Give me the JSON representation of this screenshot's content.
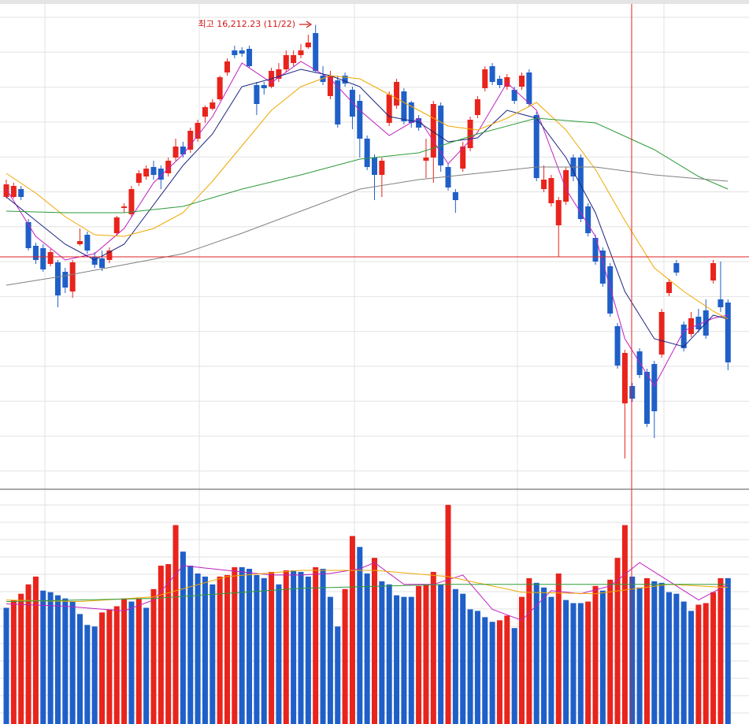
{
  "chart_data": {
    "type": "candlestick",
    "annotation": "최고 16,212.23 (11/22)",
    "up_color": "#e8241c",
    "down_color": "#1f5fc8",
    "ylim": [
      13270,
      16370
    ],
    "open": [
      15120,
      15120,
      15170,
      14960,
      14810,
      14795,
      14695,
      14705,
      14645,
      14520,
      14820,
      14880,
      14740,
      14730,
      14720,
      14890,
      15050,
      15010,
      15210,
      15250,
      15310,
      15300,
      15270,
      15370,
      15440,
      15420,
      15490,
      15630,
      15680,
      15740,
      15910,
      16050,
      16050,
      16060,
      15830,
      15830,
      15820,
      15870,
      15930,
      15970,
      16020,
      16070,
      16160,
      15890,
      15760,
      15860,
      15890,
      15800,
      15730,
      15490,
      15370,
      15260,
      15590,
      15700,
      15790,
      15720,
      15620,
      15350,
      15370,
      15700,
      15310,
      15150,
      15300,
      15430,
      15640,
      15810,
      15950,
      15870,
      15820,
      15800,
      15820,
      15910,
      15640,
      15170,
      15080,
      14940,
      15090,
      15370,
      15370,
      15060,
      14860,
      14780,
      14680,
      14300,
      13810,
      13920,
      14140,
      14010,
      14060,
      14120,
      14510,
      14700,
      14310,
      14250,
      14360,
      14400,
      14590,
      14470,
      14450
    ],
    "high": [
      15230,
      15210,
      15190,
      14980,
      14830,
      14820,
      14790,
      14720,
      14670,
      14720,
      14920,
      14900,
      14770,
      14780,
      14800,
      15000,
      15080,
      15190,
      15290,
      15320,
      15350,
      15320,
      15370,
      15490,
      15470,
      15560,
      15610,
      15700,
      15740,
      15890,
      16000,
      16080,
      16070,
      16080,
      15850,
      15850,
      15940,
      15970,
      16050,
      16050,
      16090,
      16150,
      16212.23,
      15950,
      15920,
      15890,
      15910,
      15820,
      15770,
      15510,
      15390,
      15370,
      15790,
      15870,
      15810,
      15730,
      15640,
      15490,
      15730,
      15720,
      15330,
      15170,
      15470,
      15630,
      15760,
      15950,
      15970,
      15890,
      15900,
      15820,
      15910,
      15930,
      15660,
      15320,
      15260,
      15120,
      15310,
      15390,
      15390,
      15080,
      14880,
      14800,
      14700,
      14320,
      14150,
      13940,
      14160,
      14030,
      14080,
      14410,
      14600,
      14720,
      14330,
      14390,
      14410,
      14470,
      14720,
      14710,
      14470
    ],
    "low": [
      15110,
      15110,
      15100,
      14780,
      14695,
      14645,
      14680,
      14420,
      14510,
      14480,
      14810,
      14760,
      14670,
      14650,
      14700,
      14870,
      15020,
      14990,
      15190,
      15230,
      15230,
      15170,
      15250,
      15350,
      15370,
      15400,
      15470,
      15590,
      15670,
      15730,
      15890,
      16000,
      16010,
      15940,
      15640,
      15770,
      15810,
      15850,
      15910,
      15950,
      16000,
      16060,
      15910,
      15830,
      15740,
      15560,
      15820,
      15550,
      15370,
      15290,
      15100,
      15120,
      15570,
      15680,
      15580,
      15560,
      15540,
      15240,
      15210,
      15280,
      15160,
      15020,
      15280,
      15410,
      15620,
      15790,
      15830,
      15810,
      15800,
      15710,
      15800,
      15690,
      15220,
      15150,
      15060,
      14740,
      15070,
      15220,
      14960,
      14870,
      14690,
      14550,
      14360,
      14030,
      13460,
      13820,
      13970,
      13660,
      13590,
      14100,
      14490,
      14620,
      14140,
      14230,
      14260,
      14220,
      14570,
      14390,
      14020
    ],
    "close": [
      15200,
      15190,
      15120,
      14795,
      14720,
      14660,
      14770,
      14495,
      14545,
      14705,
      14840,
      14780,
      14690,
      14670,
      14780,
      14990,
      15060,
      15170,
      15270,
      15300,
      15260,
      15230,
      15350,
      15440,
      15390,
      15540,
      15590,
      15690,
      15720,
      15880,
      15980,
      16020,
      16030,
      15950,
      15710,
      15810,
      15920,
      15930,
      16020,
      16020,
      16050,
      16100,
      15920,
      15850,
      15890,
      15580,
      15840,
      15630,
      15490,
      15310,
      15260,
      15350,
      15770,
      15850,
      15600,
      15590,
      15560,
      15370,
      15710,
      15320,
      15180,
      15100,
      15440,
      15610,
      15740,
      15930,
      15850,
      15830,
      15880,
      15730,
      15890,
      15710,
      15240,
      15230,
      15240,
      15100,
      15290,
      15250,
      14980,
      14890,
      14710,
      14570,
      14380,
      14050,
      14130,
      13840,
      13990,
      13680,
      13760,
      14390,
      14580,
      14640,
      14160,
      14350,
      14280,
      14240,
      14700,
      14420,
      14070
    ],
    "moving_averages": [
      {
        "color": "#c020c0",
        "x": [
          0,
          4,
          8,
          12,
          16,
          20,
          24,
          28,
          32,
          36,
          40,
          44,
          48,
          52,
          56,
          60,
          64,
          68,
          72,
          76,
          80,
          84,
          88,
          92,
          96,
          98
        ],
        "values": [
          15170,
          14870,
          14720,
          14760,
          14920,
          15210,
          15390,
          15630,
          15970,
          15845,
          15980,
          15870,
          15670,
          15510,
          15620,
          15330,
          15530,
          15845,
          15670,
          15170,
          14870,
          14220,
          13920,
          14270,
          14350,
          14370
        ]
      },
      {
        "color": "#1a237e",
        "x": [
          0,
          4,
          8,
          12,
          16,
          20,
          24,
          28,
          32,
          36,
          40,
          44,
          48,
          52,
          56,
          60,
          64,
          68,
          72,
          76,
          80,
          84,
          88,
          92,
          96,
          98
        ],
        "values": [
          15120,
          14970,
          14820,
          14720,
          14820,
          15070,
          15320,
          15520,
          15820,
          15870,
          15930,
          15890,
          15820,
          15630,
          15595,
          15470,
          15495,
          15670,
          15620,
          15370,
          15020,
          14520,
          14220,
          14170,
          14370,
          14345
        ]
      },
      {
        "color": "#f0a800",
        "x": [
          0,
          4,
          8,
          12,
          16,
          20,
          24,
          28,
          32,
          36,
          40,
          44,
          48,
          52,
          56,
          60,
          64,
          68,
          72,
          76,
          80,
          84,
          88,
          92,
          96,
          98
        ],
        "values": [
          15270,
          15145,
          14995,
          14880,
          14870,
          14920,
          15020,
          15220,
          15445,
          15670,
          15820,
          15890,
          15870,
          15770,
          15670,
          15570,
          15545,
          15620,
          15720,
          15545,
          15295,
          14970,
          14670,
          14520,
          14395,
          14345
        ]
      },
      {
        "color": "#2e9b3a",
        "x": [
          0,
          8,
          16,
          24,
          32,
          40,
          48,
          56,
          64,
          72,
          80,
          88,
          94,
          98
        ],
        "values": [
          15030,
          15020,
          15020,
          15060,
          15170,
          15260,
          15360,
          15400,
          15520,
          15620,
          15590,
          15420,
          15250,
          15170
        ]
      },
      {
        "color": "#808080",
        "x": [
          0,
          8,
          16,
          24,
          32,
          40,
          48,
          56,
          64,
          72,
          80,
          88,
          98
        ],
        "values": [
          14560,
          14620,
          14690,
          14760,
          14890,
          15030,
          15170,
          15230,
          15270,
          15310,
          15310,
          15260,
          15220
        ]
      }
    ],
    "volume": {
      "ylim": [
        0,
        3000
      ],
      "values": [
        1490,
        1590,
        1670,
        1790,
        1890,
        1710,
        1690,
        1650,
        1610,
        1570,
        1410,
        1270,
        1250,
        1430,
        1470,
        1510,
        1610,
        1570,
        1610,
        1490,
        1730,
        2030,
        2050,
        2550,
        2210,
        2030,
        1930,
        1890,
        1790,
        1890,
        1910,
        2010,
        2010,
        1990,
        1910,
        1870,
        1950,
        1790,
        1970,
        1970,
        1950,
        1890,
        2010,
        1990,
        1630,
        1250,
        1730,
        2410,
        2270,
        1930,
        2130,
        1830,
        1790,
        1650,
        1630,
        1630,
        1770,
        1790,
        1950,
        1790,
        2810,
        1730,
        1670,
        1470,
        1450,
        1370,
        1310,
        1330,
        1390,
        1230,
        1630,
        1870,
        1810,
        1750,
        1630,
        1930,
        1590,
        1550,
        1550,
        1570,
        1770,
        1710,
        1850,
        2130,
        2550,
        1890,
        1750,
        1870,
        1830,
        1810,
        1690,
        1670,
        1570,
        1450,
        1530,
        1550,
        1690,
        1870,
        1870
      ],
      "moving_averages": [
        {
          "color": "#c020c0",
          "x": [
            0,
            8,
            16,
            20,
            24,
            28,
            32,
            36,
            40,
            44,
            48,
            50,
            54,
            58,
            62,
            66,
            70,
            74,
            78,
            82,
            86,
            90,
            94,
            98
          ],
          "values": [
            1540,
            1510,
            1450,
            1590,
            2030,
            1990,
            1950,
            1910,
            1910,
            1930,
            1990,
            2070,
            1790,
            1790,
            1910,
            1470,
            1330,
            1710,
            1670,
            1770,
            2070,
            1830,
            1590,
            1790
          ]
        },
        {
          "color": "#f0a800",
          "x": [
            0,
            10,
            20,
            30,
            40,
            50,
            60,
            70,
            80,
            90,
            98
          ],
          "values": [
            1590,
            1570,
            1630,
            1890,
            1970,
            1970,
            1890,
            1690,
            1670,
            1790,
            1750
          ]
        },
        {
          "color": "#2e9b3a",
          "x": [
            0,
            20,
            40,
            60,
            80,
            98
          ],
          "values": [
            1570,
            1610,
            1740,
            1790,
            1790,
            1790
          ]
        }
      ]
    }
  }
}
